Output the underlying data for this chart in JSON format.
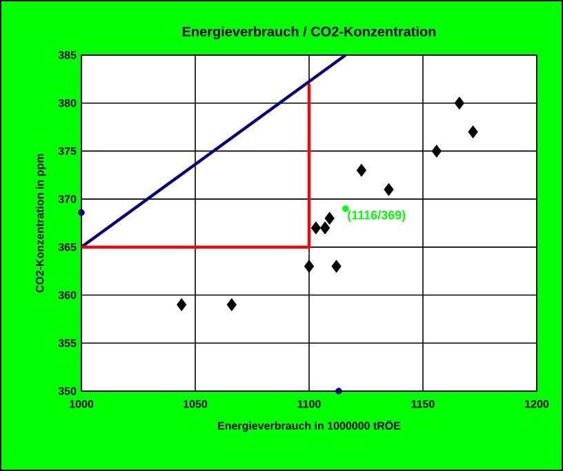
{
  "chart_data": {
    "type": "scatter",
    "title": "Energieverbrauch / CO2-Konzentration",
    "xlabel": "Energieverbrauch in 1000000 tRÖE",
    "ylabel": "CO2-Konzentration in ppm",
    "xlim": [
      1000,
      1200
    ],
    "xticks": [
      1000,
      1050,
      1100,
      1150,
      1200
    ],
    "ylim": [
      350,
      385
    ],
    "yticks": [
      350,
      355,
      360,
      365,
      370,
      375,
      380,
      385
    ],
    "grid": true,
    "marker": "diamond",
    "series": [
      {
        "color": "#000000",
        "x": [
          1044,
          1066,
          1100,
          1112,
          1103,
          1107,
          1109,
          1123,
          1135,
          1156,
          1166,
          1172
        ],
        "values": [
          359,
          359,
          363,
          363,
          367,
          367,
          368,
          373,
          371,
          375,
          380,
          377
        ]
      },
      {
        "type": "line",
        "color": "#000080",
        "marker": "none",
        "x": [
          1000,
          1116
        ],
        "values": [
          365,
          385
        ]
      },
      {
        "type": "line",
        "color": "#ff0000",
        "marker": "none",
        "x": [
          1000,
          1100,
          1100
        ],
        "values": [
          365,
          365,
          382
        ]
      },
      {
        "color": "#00ff00",
        "marker": "circle",
        "x": [
          1116
        ],
        "values": [
          369
        ],
        "value_labels": [
          "(1116/369)"
        ]
      },
      {
        "color": "#000080",
        "marker": "circle",
        "x": [
          1000,
          1113
        ],
        "values": [
          368.6,
          350
        ]
      }
    ]
  }
}
